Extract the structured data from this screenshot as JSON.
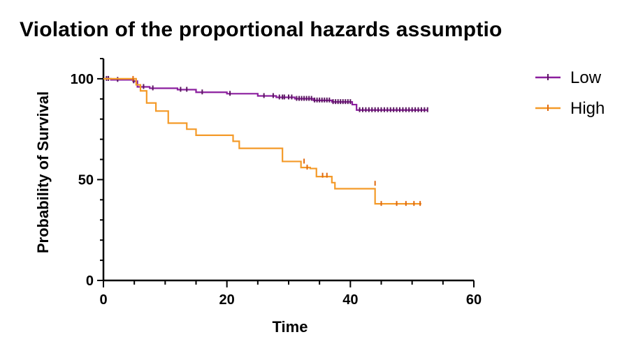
{
  "chart_data": {
    "type": "line",
    "title": "Violation of the proportional hazards assumptio",
    "xlabel": "Time",
    "ylabel": "Probability of Survival",
    "xlim": [
      0,
      60
    ],
    "ylim": [
      0,
      110
    ],
    "xticks": [
      0,
      20,
      40,
      60
    ],
    "yticks": [
      0,
      50,
      100
    ],
    "legend_position": "top-right",
    "grid": false,
    "series": [
      {
        "name": "Low",
        "color": "#8B1E9E",
        "censor_color": "#5A1760",
        "steps": [
          [
            0,
            100
          ],
          [
            1.2,
            99.5
          ],
          [
            4.8,
            98.8
          ],
          [
            5.5,
            96
          ],
          [
            7.5,
            95.3
          ],
          [
            12,
            94.6
          ],
          [
            15,
            93.3
          ],
          [
            20,
            92.6
          ],
          [
            25,
            91.5
          ],
          [
            28,
            90.8
          ],
          [
            31,
            90.1
          ],
          [
            34,
            89.3
          ],
          [
            37,
            88.5
          ],
          [
            40.3,
            87.2
          ],
          [
            41,
            84.5
          ],
          [
            52.5,
            84.5
          ]
        ],
        "censored": [
          [
            0.5,
            100
          ],
          [
            0.8,
            100
          ],
          [
            2.3,
            99.5
          ],
          [
            4.9,
            98.8
          ],
          [
            6.5,
            96
          ],
          [
            8,
            95.3
          ],
          [
            12.5,
            94.6
          ],
          [
            13.5,
            94.6
          ],
          [
            16,
            93.3
          ],
          [
            20.5,
            92.6
          ],
          [
            26,
            91.5
          ],
          [
            27.5,
            91.5
          ],
          [
            28.5,
            90.8
          ],
          [
            29,
            90.8
          ],
          [
            29.3,
            90.8
          ],
          [
            30,
            90.8
          ],
          [
            30.5,
            90.8
          ],
          [
            31.3,
            90.1
          ],
          [
            31.7,
            90.1
          ],
          [
            32.1,
            90.1
          ],
          [
            32.5,
            90.1
          ],
          [
            32.9,
            90.1
          ],
          [
            33.3,
            90.1
          ],
          [
            33.7,
            90.1
          ],
          [
            34.2,
            89.3
          ],
          [
            34.6,
            89.3
          ],
          [
            35,
            89.3
          ],
          [
            35.4,
            89.3
          ],
          [
            35.8,
            89.3
          ],
          [
            36.2,
            89.3
          ],
          [
            36.6,
            89.3
          ],
          [
            37.2,
            88.5
          ],
          [
            37.6,
            88.5
          ],
          [
            38,
            88.5
          ],
          [
            38.4,
            88.5
          ],
          [
            38.8,
            88.5
          ],
          [
            39.2,
            88.5
          ],
          [
            39.6,
            88.5
          ],
          [
            40,
            88.5
          ],
          [
            41.5,
            84.5
          ],
          [
            42,
            84.5
          ],
          [
            42.5,
            84.5
          ],
          [
            43,
            84.5
          ],
          [
            43.5,
            84.5
          ],
          [
            44,
            84.5
          ],
          [
            44.5,
            84.5
          ],
          [
            45,
            84.5
          ],
          [
            45.5,
            84.5
          ],
          [
            46,
            84.5
          ],
          [
            46.5,
            84.5
          ],
          [
            47,
            84.5
          ],
          [
            47.5,
            84.5
          ],
          [
            48,
            84.5
          ],
          [
            48.5,
            84.5
          ],
          [
            49,
            84.5
          ],
          [
            49.5,
            84.5
          ],
          [
            50,
            84.5
          ],
          [
            50.5,
            84.5
          ],
          [
            51,
            84.5
          ],
          [
            51.5,
            84.5
          ],
          [
            52,
            84.5
          ],
          [
            52.5,
            84.5
          ]
        ]
      },
      {
        "name": "High",
        "color": "#F49A28",
        "censor_color": "#E06A10",
        "steps": [
          [
            0,
            100
          ],
          [
            5.3,
            97
          ],
          [
            6,
            94
          ],
          [
            7,
            88
          ],
          [
            8.5,
            84
          ],
          [
            10.5,
            78
          ],
          [
            13.5,
            75
          ],
          [
            15,
            72
          ],
          [
            21,
            69
          ],
          [
            22,
            65.5
          ],
          [
            29,
            59
          ],
          [
            32,
            56
          ],
          [
            33.5,
            55.5
          ],
          [
            34.5,
            51.5
          ],
          [
            37,
            48.5
          ],
          [
            37.5,
            45.5
          ],
          [
            44,
            38
          ],
          [
            51.5,
            38
          ]
        ],
        "censored": [
          [
            4.8,
            100
          ],
          [
            32.5,
            59
          ],
          [
            33,
            56
          ],
          [
            35.5,
            52
          ],
          [
            36.2,
            52
          ],
          [
            44,
            48
          ],
          [
            45,
            38
          ],
          [
            47.5,
            38
          ],
          [
            49,
            38
          ],
          [
            50.3,
            38
          ],
          [
            51.3,
            38
          ]
        ]
      }
    ]
  }
}
